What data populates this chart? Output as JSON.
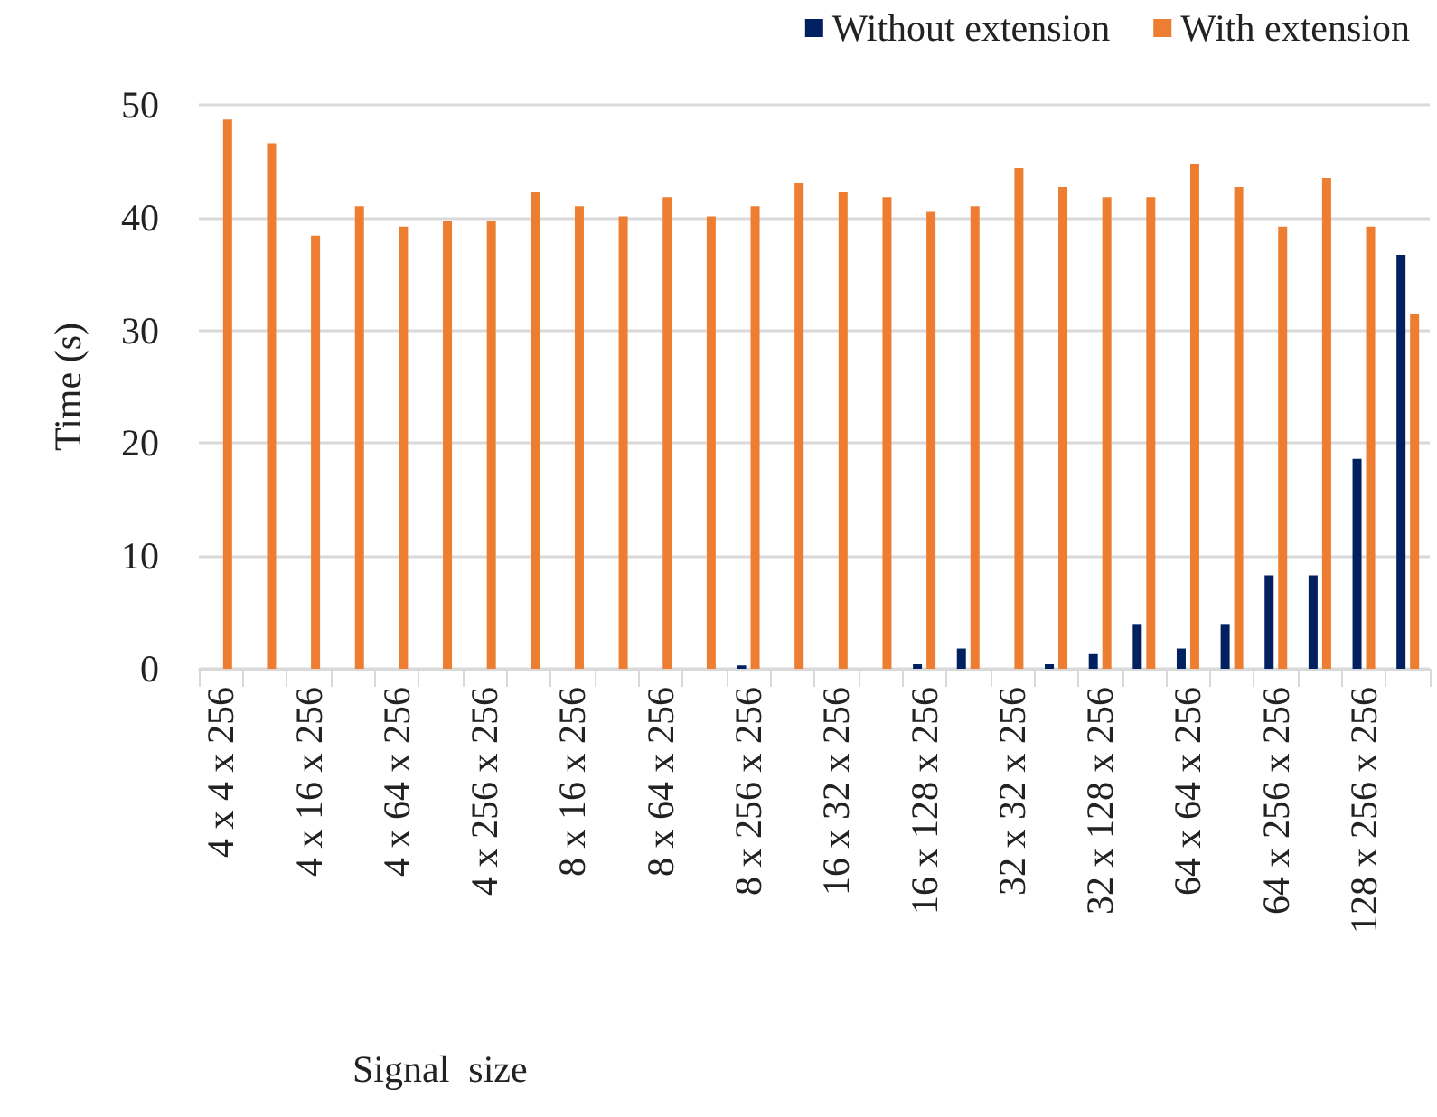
{
  "chart_data": {
    "type": "bar",
    "xlabel": "Signal  size",
    "ylabel": "Time (s)",
    "categories": [
      "4 x 4 x 256",
      null,
      "4 x 16 x 256",
      null,
      "4 x 64 x 256",
      null,
      "4 x 256 x 256",
      null,
      "8 x 16 x 256",
      null,
      "8 x 64 x 256",
      null,
      "8 x 256 x 256",
      null,
      "16 x 32 x 256",
      null,
      "16 x 128 x 256",
      null,
      "32 x 32 x 256",
      null,
      "32 x 128 x 256",
      null,
      "64 x 64 x 256",
      null,
      "64 x 256 x 256",
      null,
      "128 x 256 x 256",
      null
    ],
    "series": [
      {
        "name": "Without extension",
        "color": "#002060",
        "values": [
          0,
          0,
          0,
          0,
          0,
          0,
          0,
          0,
          0,
          0,
          0,
          0,
          0.3,
          0,
          0,
          0,
          0.4,
          1.8,
          0,
          0.4,
          1.3,
          3.9,
          1.8,
          3.9,
          8.3,
          8.3,
          18.6,
          36.7
        ]
      },
      {
        "name": "With extension",
        "color": "#ed7d31",
        "values": [
          48.7,
          46.6,
          38.4,
          41.0,
          39.2,
          39.7,
          39.7,
          42.3,
          41.0,
          40.1,
          41.8,
          40.1,
          41.0,
          43.1,
          42.3,
          41.8,
          40.5,
          41.0,
          44.4,
          42.7,
          41.8,
          41.8,
          44.8,
          42.7,
          39.2,
          43.5,
          39.2,
          31.5
        ]
      }
    ],
    "ylim": [
      0,
      50
    ],
    "yticks": [
      0,
      10,
      20,
      30,
      40,
      50
    ],
    "grid": "y",
    "legend": "top right"
  }
}
